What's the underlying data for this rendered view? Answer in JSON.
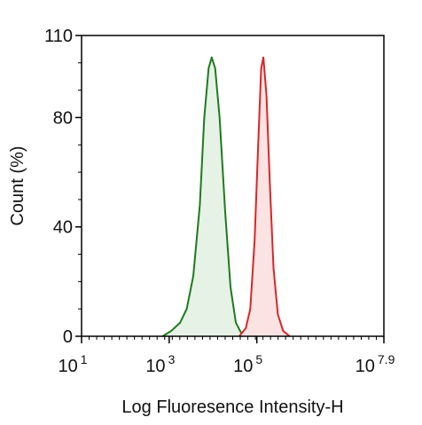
{
  "chart_data": {
    "type": "area",
    "xlabel": "Log Fluoresence Intensity-H",
    "ylabel": "Count  (%)",
    "x_scale": "log10",
    "xlim_exponent": [
      1,
      7.9
    ],
    "ylim": [
      0,
      110
    ],
    "x_ticks": [
      {
        "base": "10",
        "exp": "1",
        "value": 1
      },
      {
        "base": "10",
        "exp": "3",
        "value": 3
      },
      {
        "base": "10",
        "exp": "5",
        "value": 5
      },
      {
        "base": "10",
        "exp": "7.9",
        "value": 7.9
      }
    ],
    "y_ticks": [
      {
        "label": "0",
        "value": 0
      },
      {
        "label": "40",
        "value": 40
      },
      {
        "label": "80",
        "value": 80
      },
      {
        "label": "110",
        "value": 110
      }
    ],
    "grid": false,
    "series": [
      {
        "color": "#1e7a1e",
        "fill": "#e6f2e6",
        "points": [
          [
            2.85,
            0
          ],
          [
            3.05,
            2
          ],
          [
            3.25,
            5
          ],
          [
            3.4,
            10
          ],
          [
            3.55,
            22
          ],
          [
            3.7,
            48
          ],
          [
            3.8,
            80
          ],
          [
            3.9,
            98
          ],
          [
            3.97,
            102
          ],
          [
            4.05,
            98
          ],
          [
            4.15,
            80
          ],
          [
            4.28,
            45
          ],
          [
            4.4,
            18
          ],
          [
            4.52,
            5
          ],
          [
            4.65,
            1
          ],
          [
            4.8,
            0
          ]
        ]
      },
      {
        "color": "#d62728",
        "fill": "#fbe3e3",
        "points": [
          [
            4.6,
            0
          ],
          [
            4.75,
            3
          ],
          [
            4.85,
            10
          ],
          [
            4.95,
            35
          ],
          [
            5.03,
            70
          ],
          [
            5.1,
            98
          ],
          [
            5.15,
            102
          ],
          [
            5.22,
            88
          ],
          [
            5.3,
            55
          ],
          [
            5.38,
            25
          ],
          [
            5.48,
            8
          ],
          [
            5.6,
            2
          ],
          [
            5.75,
            0
          ]
        ]
      }
    ]
  }
}
